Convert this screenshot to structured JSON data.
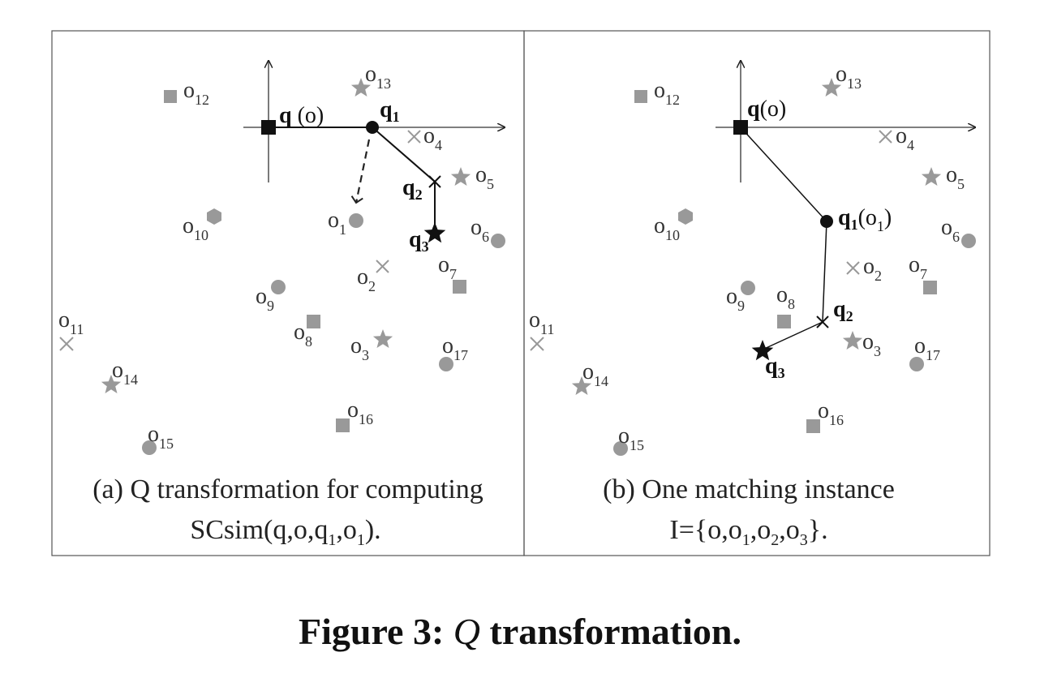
{
  "figure_caption": {
    "prefix": "Figure 3:",
    "symbol": "Q",
    "suffix": "transformation."
  },
  "colors": {
    "object_gray": "#999999",
    "query_black": "#111111",
    "frame": "#555555"
  },
  "panels": [
    {
      "id": "a",
      "caption_line1": "(a) Q transformation for computing",
      "caption_line2_parts": [
        "SCsim(q,o,q",
        "1",
        ",o",
        "1",
        ")."
      ],
      "query_path_labels": [
        "q(o)",
        "q1",
        "q2",
        "q3"
      ],
      "objects": [
        {
          "shape": "square",
          "label": "o",
          "sub": "12"
        },
        {
          "shape": "star",
          "label": "o",
          "sub": "13"
        },
        {
          "shape": "cross",
          "label": "o",
          "sub": "4"
        },
        {
          "shape": "star",
          "label": "o",
          "sub": "5"
        },
        {
          "shape": "hexagon",
          "label": "o",
          "sub": "10"
        },
        {
          "shape": "circle",
          "label": "o",
          "sub": "1"
        },
        {
          "shape": "circle",
          "label": "o",
          "sub": "6"
        },
        {
          "shape": "cross",
          "label": "o",
          "sub": "2"
        },
        {
          "shape": "square",
          "label": "o",
          "sub": "7"
        },
        {
          "shape": "circle",
          "label": "o",
          "sub": "9"
        },
        {
          "shape": "square",
          "label": "o",
          "sub": "8"
        },
        {
          "shape": "cross",
          "label": "o",
          "sub": "11"
        },
        {
          "shape": "star",
          "label": "o",
          "sub": "3"
        },
        {
          "shape": "circle",
          "label": "o",
          "sub": "17"
        },
        {
          "shape": "star",
          "label": "o",
          "sub": "14"
        },
        {
          "shape": "square",
          "label": "o",
          "sub": "16"
        },
        {
          "shape": "circle",
          "label": "o",
          "sub": "15"
        }
      ]
    },
    {
      "id": "b",
      "caption_line1": "(b) One matching instance",
      "caption_line2_parts": [
        "I={o,o",
        "1",
        ",o",
        "2",
        ",o",
        "3",
        "}."
      ],
      "query_path_labels": [
        "q(o)",
        "q1(o1)",
        "q2",
        "q3"
      ],
      "objects": [
        {
          "shape": "square",
          "label": "o",
          "sub": "12"
        },
        {
          "shape": "star",
          "label": "o",
          "sub": "13"
        },
        {
          "shape": "cross",
          "label": "o",
          "sub": "4"
        },
        {
          "shape": "star",
          "label": "o",
          "sub": "5"
        },
        {
          "shape": "hexagon",
          "label": "o",
          "sub": "10"
        },
        {
          "shape": "circle",
          "label": "o",
          "sub": "6"
        },
        {
          "shape": "cross",
          "label": "o",
          "sub": "2"
        },
        {
          "shape": "square",
          "label": "o",
          "sub": "7"
        },
        {
          "shape": "circle",
          "label": "o",
          "sub": "9"
        },
        {
          "shape": "square",
          "label": "o",
          "sub": "8"
        },
        {
          "shape": "star",
          "label": "o",
          "sub": "3"
        },
        {
          "shape": "circle",
          "label": "o",
          "sub": "17"
        },
        {
          "shape": "cross",
          "label": "o",
          "sub": "11"
        },
        {
          "shape": "star",
          "label": "o",
          "sub": "14"
        },
        {
          "shape": "square",
          "label": "o",
          "sub": "16"
        },
        {
          "shape": "circle",
          "label": "o",
          "sub": "15"
        }
      ]
    }
  ]
}
